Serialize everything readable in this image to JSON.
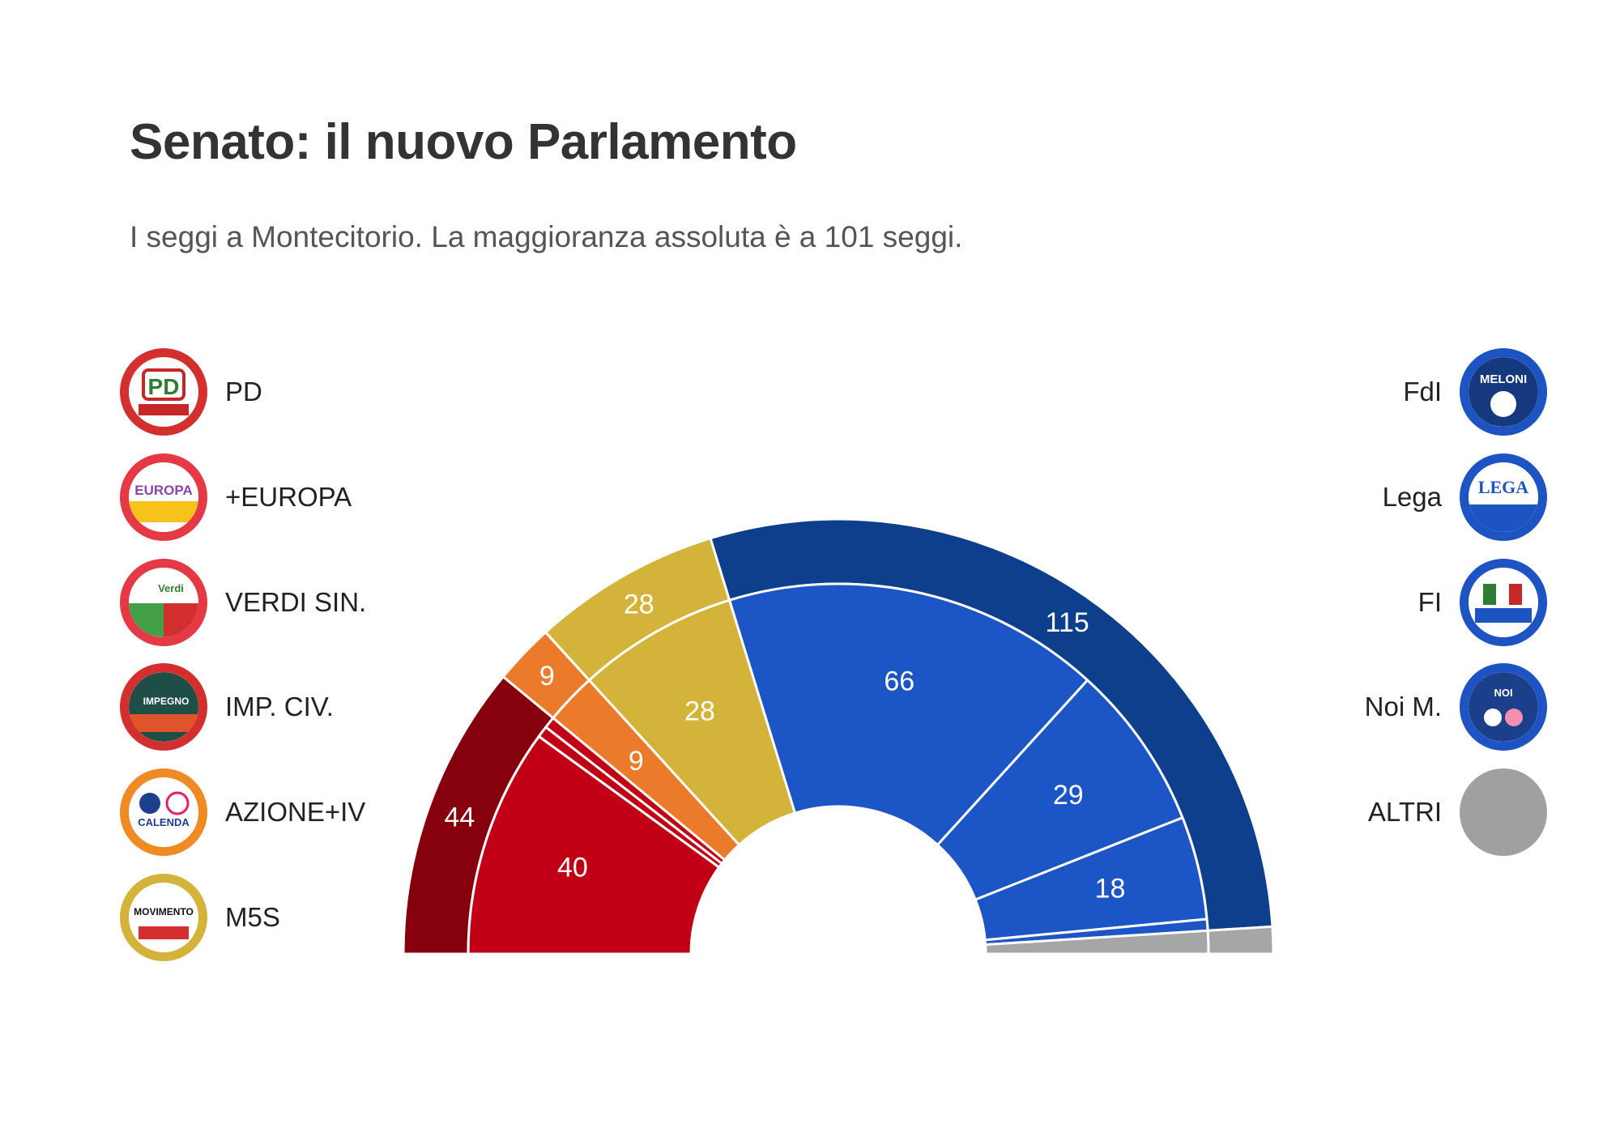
{
  "title": "Senato: il nuovo Parlamento",
  "subtitle": "I seggi a Montecitorio. La maggioranza assoluta è a 101 seggi.",
  "legend_left": [
    {
      "label": "PD",
      "icon": "pd-logo-icon",
      "color": "#d32f2f"
    },
    {
      "label": "+EUROPA",
      "icon": "piu-europa-logo-icon",
      "color": "#e53945"
    },
    {
      "label": "VERDI SIN.",
      "icon": "verdi-sinistra-logo-icon",
      "color": "#e53945"
    },
    {
      "label": "IMP. CIV.",
      "icon": "impegno-civico-logo-icon",
      "color": "#d32f2f"
    },
    {
      "label": "AZIONE+IV",
      "icon": "azione-iv-logo-icon",
      "color": "#f08a24"
    },
    {
      "label": "M5S",
      "icon": "m5s-logo-icon",
      "color": "#d4b33a"
    }
  ],
  "legend_right": [
    {
      "label": "FdI",
      "icon": "fdi-logo-icon",
      "color": "#1d53c2"
    },
    {
      "label": "Lega",
      "icon": "lega-logo-icon",
      "color": "#1d53c2"
    },
    {
      "label": "FI",
      "icon": "forza-italia-logo-icon",
      "color": "#1d53c2"
    },
    {
      "label": "Noi M.",
      "icon": "noi-moderati-logo-icon",
      "color": "#1d53c2"
    },
    {
      "label": "ALTRI",
      "icon": "altri-circle-icon",
      "color": "#a0a0a0"
    }
  ],
  "chart_data": {
    "type": "pie",
    "variant": "semicircle-hemicycle",
    "total_seats": 200,
    "majority": 101,
    "outer_ring": [
      {
        "value": 44,
        "color": "#85000c",
        "label": "44"
      },
      {
        "value": 9,
        "color": "#ec7a2b",
        "label": "9"
      },
      {
        "value": 28,
        "color": "#d4b33a",
        "label": "28"
      },
      {
        "value": 115,
        "color": "#0e3f8c",
        "label": ""
      },
      {
        "value": 4,
        "color": "#a6a6a6",
        "label": ""
      }
    ],
    "outer_coalition_labels": [
      "",
      "",
      "",
      "115",
      ""
    ],
    "inner_ring": [
      {
        "name": "PD",
        "value": 40,
        "color": "#c10016",
        "label": "40"
      },
      {
        "name": "+EUROPA",
        "value": 2,
        "color": "#c10016",
        "label": ""
      },
      {
        "name": "VERDI SIN.",
        "value": 2,
        "color": "#c10016",
        "label": ""
      },
      {
        "name": "AZIONE+IV",
        "value": 9,
        "color": "#ec7a2b",
        "label": "9"
      },
      {
        "name": "M5S",
        "value": 28,
        "color": "#d4b33a",
        "label": "28"
      },
      {
        "name": "FdI",
        "value": 66,
        "color": "#1c55c5",
        "label": "66"
      },
      {
        "name": "Lega",
        "value": 29,
        "color": "#1c55c5",
        "label": "29"
      },
      {
        "name": "FI",
        "value": 18,
        "color": "#1c55c5",
        "label": "18"
      },
      {
        "name": "Noi M.",
        "value": 2,
        "color": "#1c55c5",
        "label": ""
      },
      {
        "name": "ALTRI",
        "value": 4,
        "color": "#a6a6a6",
        "label": ""
      }
    ]
  }
}
